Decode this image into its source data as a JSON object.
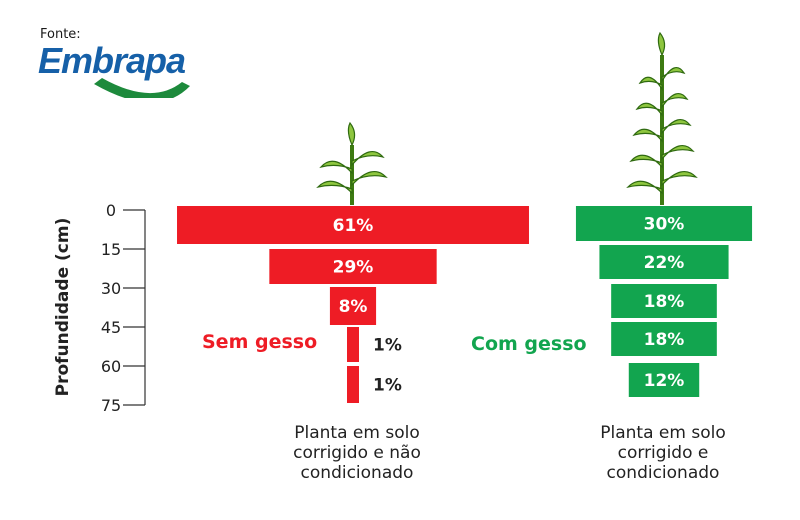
{
  "source_label": "Fonte:",
  "logo_text": "Embrapa",
  "chart_data": {
    "type": "bar",
    "orientation": "horizontal",
    "ylabel": "Profundidade (cm)",
    "yticks": [
      0,
      15,
      30,
      45,
      60,
      75
    ],
    "ylim": [
      0,
      75
    ],
    "depth_layers": [
      "0-15",
      "15-30",
      "30-45",
      "45-60",
      "60-75"
    ],
    "series": [
      {
        "name": "Sem gesso",
        "color": "#ee1c25",
        "values": [
          61,
          29,
          8,
          1,
          1
        ],
        "labels": [
          "61%",
          "29%",
          "8%",
          "1%",
          "1%"
        ],
        "caption": [
          "Planta em solo",
          "corrigido e não",
          "condicionado"
        ]
      },
      {
        "name": "Com gesso",
        "color": "#12a54f",
        "values": [
          30,
          22,
          18,
          18,
          12
        ],
        "labels": [
          "30%",
          "22%",
          "18%",
          "18%",
          "12%"
        ],
        "caption": [
          "Planta em solo",
          "corrigido e",
          "condicionado"
        ]
      }
    ]
  }
}
